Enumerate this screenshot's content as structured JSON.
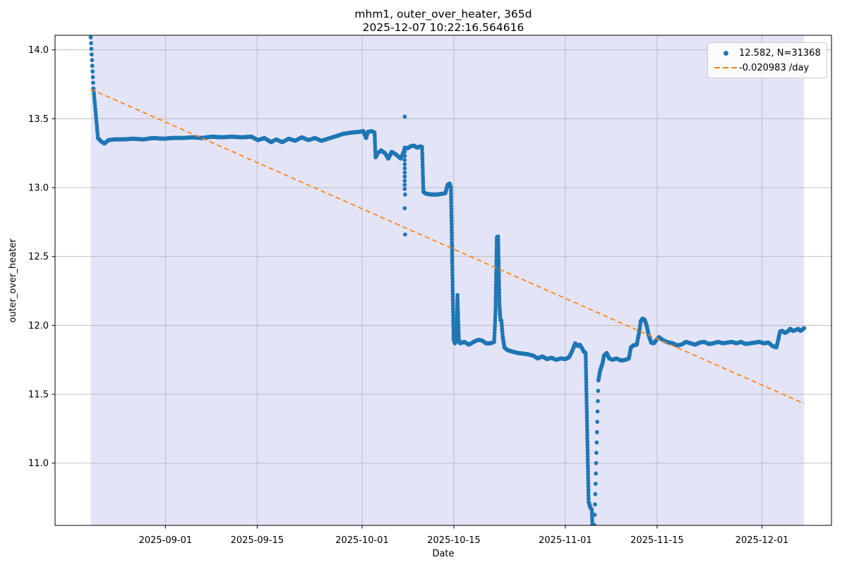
{
  "title": {
    "line1": "mhm1, outer_over_heater, 365d",
    "line2": "2025-12-07 10:22:16.564616"
  },
  "legend": {
    "items": [
      {
        "label": "12.582, N=31368",
        "marker": "dot",
        "color": "#1f77b4"
      },
      {
        "label": "-0.020983 /day",
        "marker": "dashed-line",
        "color": "#ff7f0e"
      }
    ]
  },
  "colors": {
    "series_blue": "#1f77b4",
    "trend_orange": "#ff7f0e",
    "span_background": "#e4e4f8",
    "grid": "#b0b0b0",
    "spine": "#000000"
  },
  "chart_data": {
    "type": "scatter",
    "title": "mhm1, outer_over_heater, 365d",
    "subtitle": "2025-12-07 10:22:16.564616",
    "xlabel": "Date",
    "ylabel": "outer_over_heater",
    "x_unit": "days, 0 = first sample (approx 2025-08-20)",
    "xlim": [
      -5.44,
      113.0
    ],
    "ylim": [
      10.548,
      14.106
    ],
    "grid": true,
    "legend_position": "upper right",
    "x_ticks": [
      {
        "t": 11.4,
        "label": "2025-09-01"
      },
      {
        "t": 25.4,
        "label": "2025-09-15"
      },
      {
        "t": 41.4,
        "label": "2025-10-01"
      },
      {
        "t": 55.4,
        "label": "2025-10-15"
      },
      {
        "t": 72.4,
        "label": "2025-11-01"
      },
      {
        "t": 86.4,
        "label": "2025-11-15"
      },
      {
        "t": 102.4,
        "label": "2025-12-01"
      }
    ],
    "y_ticks": [
      {
        "v": 11.0,
        "label": "11.0"
      },
      {
        "v": 11.5,
        "label": "11.5"
      },
      {
        "v": 12.0,
        "label": "12.0"
      },
      {
        "v": 12.5,
        "label": "12.5"
      },
      {
        "v": 13.0,
        "label": "13.0"
      },
      {
        "v": 13.5,
        "label": "13.5"
      },
      {
        "v": 14.0,
        "label": "14.0"
      }
    ],
    "span": {
      "t0": 0,
      "t1": 108.83,
      "color": "#e4e4f8"
    },
    "series": {
      "name": "12.582, N=31368",
      "mean": 12.582,
      "n_points": 31368,
      "color": "#1f77b4",
      "marker_radius": 2.9,
      "keypoints": [
        [
          0,
          14.09
        ],
        [
          0.42,
          13.72,
          1
        ],
        [
          1.1,
          13.36
        ],
        [
          1.6,
          13.335
        ],
        [
          2.1,
          13.32
        ],
        [
          2.7,
          13.345
        ],
        [
          3.6,
          13.35
        ],
        [
          5,
          13.35
        ],
        [
          6.5,
          13.355
        ],
        [
          8,
          13.35
        ],
        [
          9.5,
          13.36
        ],
        [
          11,
          13.355
        ],
        [
          12.5,
          13.36
        ],
        [
          14,
          13.36
        ],
        [
          15.5,
          13.365
        ],
        [
          17,
          13.36
        ],
        [
          18.5,
          13.37
        ],
        [
          20,
          13.365
        ],
        [
          21.5,
          13.37
        ],
        [
          23,
          13.365
        ],
        [
          24.5,
          13.37
        ],
        [
          25.5,
          13.345
        ],
        [
          26.5,
          13.36
        ],
        [
          27.5,
          13.33
        ],
        [
          28.3,
          13.35
        ],
        [
          29.2,
          13.33
        ],
        [
          30.2,
          13.355
        ],
        [
          31.2,
          13.34
        ],
        [
          32.2,
          13.365
        ],
        [
          33.2,
          13.345
        ],
        [
          34.2,
          13.36
        ],
        [
          35.2,
          13.34
        ],
        [
          36.2,
          13.355
        ],
        [
          37.2,
          13.37
        ],
        [
          38.5,
          13.39
        ],
        [
          39.8,
          13.4
        ],
        [
          41,
          13.405
        ],
        [
          41.6,
          13.41
        ],
        [
          42,
          13.36
        ],
        [
          42.3,
          13.405
        ],
        [
          42.9,
          13.41
        ],
        [
          43.3,
          13.4
        ],
        [
          43.45,
          13.22
        ],
        [
          43.8,
          13.25
        ],
        [
          44.3,
          13.27
        ],
        [
          44.9,
          13.25
        ],
        [
          45.4,
          13.21
        ],
        [
          45.9,
          13.26
        ],
        [
          46.6,
          13.24
        ],
        [
          47.3,
          13.21
        ],
        [
          47.75,
          13.26
        ],
        [
          47.95,
          13.29
        ],
        [
          48.3,
          13.285
        ],
        [
          48.8,
          13.3
        ],
        [
          49.3,
          13.305
        ],
        [
          49.8,
          13.29
        ],
        [
          50.3,
          13.3
        ],
        [
          50.55,
          13.295
        ],
        [
          50.75,
          12.97
        ],
        [
          51.2,
          12.955
        ],
        [
          52,
          12.95
        ],
        [
          52.8,
          12.95
        ],
        [
          53.6,
          12.955
        ],
        [
          54.1,
          12.96
        ],
        [
          54.45,
          13.02
        ],
        [
          54.75,
          13.03
        ],
        [
          54.95,
          13.0
        ],
        [
          55.35,
          11.9
        ],
        [
          55.55,
          11.87
        ],
        [
          55.75,
          11.88
        ],
        [
          55.95,
          12.22
        ],
        [
          56.15,
          11.9
        ],
        [
          56.35,
          11.87
        ],
        [
          57,
          11.88
        ],
        [
          57.7,
          11.86
        ],
        [
          58.4,
          11.88
        ],
        [
          59.1,
          11.895
        ],
        [
          59.7,
          11.89
        ],
        [
          60.3,
          11.87
        ],
        [
          61,
          11.87
        ],
        [
          61.55,
          11.88
        ],
        [
          61.75,
          12.1
        ],
        [
          61.95,
          12.64
        ],
        [
          62.15,
          12.645
        ],
        [
          62.35,
          12.15
        ],
        [
          62.5,
          12.04
        ],
        [
          62.65,
          12.035
        ],
        [
          62.85,
          11.92
        ],
        [
          63.1,
          11.84
        ],
        [
          63.6,
          11.82
        ],
        [
          64.3,
          11.81
        ],
        [
          65.1,
          11.8
        ],
        [
          65.9,
          11.795
        ],
        [
          66.7,
          11.79
        ],
        [
          67.5,
          11.78
        ],
        [
          68.2,
          11.76
        ],
        [
          68.9,
          11.775
        ],
        [
          69.6,
          11.755
        ],
        [
          70.3,
          11.765
        ],
        [
          71,
          11.75
        ],
        [
          71.7,
          11.76
        ],
        [
          72.4,
          11.755
        ],
        [
          73,
          11.77
        ],
        [
          73.5,
          11.82
        ],
        [
          73.9,
          11.87
        ],
        [
          74.3,
          11.85
        ],
        [
          74.6,
          11.86
        ],
        [
          75,
          11.83
        ],
        [
          75.2,
          11.81
        ],
        [
          75.5,
          11.8
        ],
        [
          75.75,
          11.2
        ],
        [
          75.95,
          10.72
        ],
        [
          76.2,
          10.68
        ],
        [
          76.45,
          10.66
        ],
        [
          76.6,
          10.45
        ],
        [
          76.75,
          10.4
        ],
        [
          77.45,
          11.6,
          1
        ],
        [
          77.7,
          11.67
        ],
        [
          78.05,
          11.72
        ],
        [
          78.3,
          11.78
        ],
        [
          78.7,
          11.8
        ],
        [
          79.1,
          11.76
        ],
        [
          79.6,
          11.75
        ],
        [
          80.2,
          11.76
        ],
        [
          80.9,
          11.745
        ],
        [
          81.6,
          11.75
        ],
        [
          82.1,
          11.76
        ],
        [
          82.4,
          11.84
        ],
        [
          82.8,
          11.855
        ],
        [
          83.3,
          11.86
        ],
        [
          83.7,
          11.96
        ],
        [
          83.9,
          12.03
        ],
        [
          84.2,
          12.05
        ],
        [
          84.5,
          12.04
        ],
        [
          84.8,
          12.0
        ],
        [
          85.1,
          11.93
        ],
        [
          85.5,
          11.875
        ],
        [
          85.9,
          11.87
        ],
        [
          86.3,
          11.895
        ],
        [
          86.7,
          11.915
        ],
        [
          87.1,
          11.9
        ],
        [
          87.6,
          11.885
        ],
        [
          88.2,
          11.875
        ],
        [
          88.8,
          11.87
        ],
        [
          89.4,
          11.855
        ],
        [
          90.1,
          11.86
        ],
        [
          90.8,
          11.88
        ],
        [
          91.5,
          11.87
        ],
        [
          92.2,
          11.86
        ],
        [
          92.9,
          11.875
        ],
        [
          93.6,
          11.88
        ],
        [
          94.3,
          11.865
        ],
        [
          95,
          11.87
        ],
        [
          95.7,
          11.88
        ],
        [
          96.4,
          11.87
        ],
        [
          97.1,
          11.875
        ],
        [
          97.8,
          11.88
        ],
        [
          98.5,
          11.87
        ],
        [
          99.2,
          11.88
        ],
        [
          99.9,
          11.865
        ],
        [
          100.6,
          11.87
        ],
        [
          101.3,
          11.875
        ],
        [
          102,
          11.88
        ],
        [
          102.7,
          11.87
        ],
        [
          103.4,
          11.875
        ],
        [
          104,
          11.85
        ],
        [
          104.6,
          11.84
        ],
        [
          104.9,
          11.9
        ],
        [
          105.15,
          11.955
        ],
        [
          105.5,
          11.96
        ],
        [
          105.9,
          11.945
        ],
        [
          106.3,
          11.955
        ],
        [
          106.7,
          11.975
        ],
        [
          107.1,
          11.96
        ],
        [
          107.5,
          11.965
        ],
        [
          107.9,
          11.975
        ],
        [
          108.3,
          11.96
        ],
        [
          108.6,
          11.97
        ],
        [
          108.83,
          11.98
        ]
      ],
      "outlier_points": [
        [
          47.9,
          13.515
        ],
        [
          47.9,
          13.29
        ],
        [
          47.9,
          13.26
        ],
        [
          47.9,
          13.23
        ],
        [
          47.9,
          13.2
        ],
        [
          47.9,
          13.17
        ],
        [
          47.9,
          13.14
        ],
        [
          47.9,
          13.11
        ],
        [
          47.9,
          13.08
        ],
        [
          47.9,
          13.05
        ],
        [
          47.9,
          13.02
        ],
        [
          47.9,
          12.99
        ],
        [
          47.95,
          12.95
        ],
        [
          47.9,
          12.85
        ],
        [
          47.95,
          12.66
        ]
      ]
    },
    "trend": {
      "name": "-0.020983 /day",
      "slope_per_day": -0.020983,
      "color": "#ff7f0e",
      "points": [
        [
          0,
          13.715
        ],
        [
          108.83,
          11.432
        ]
      ]
    }
  }
}
